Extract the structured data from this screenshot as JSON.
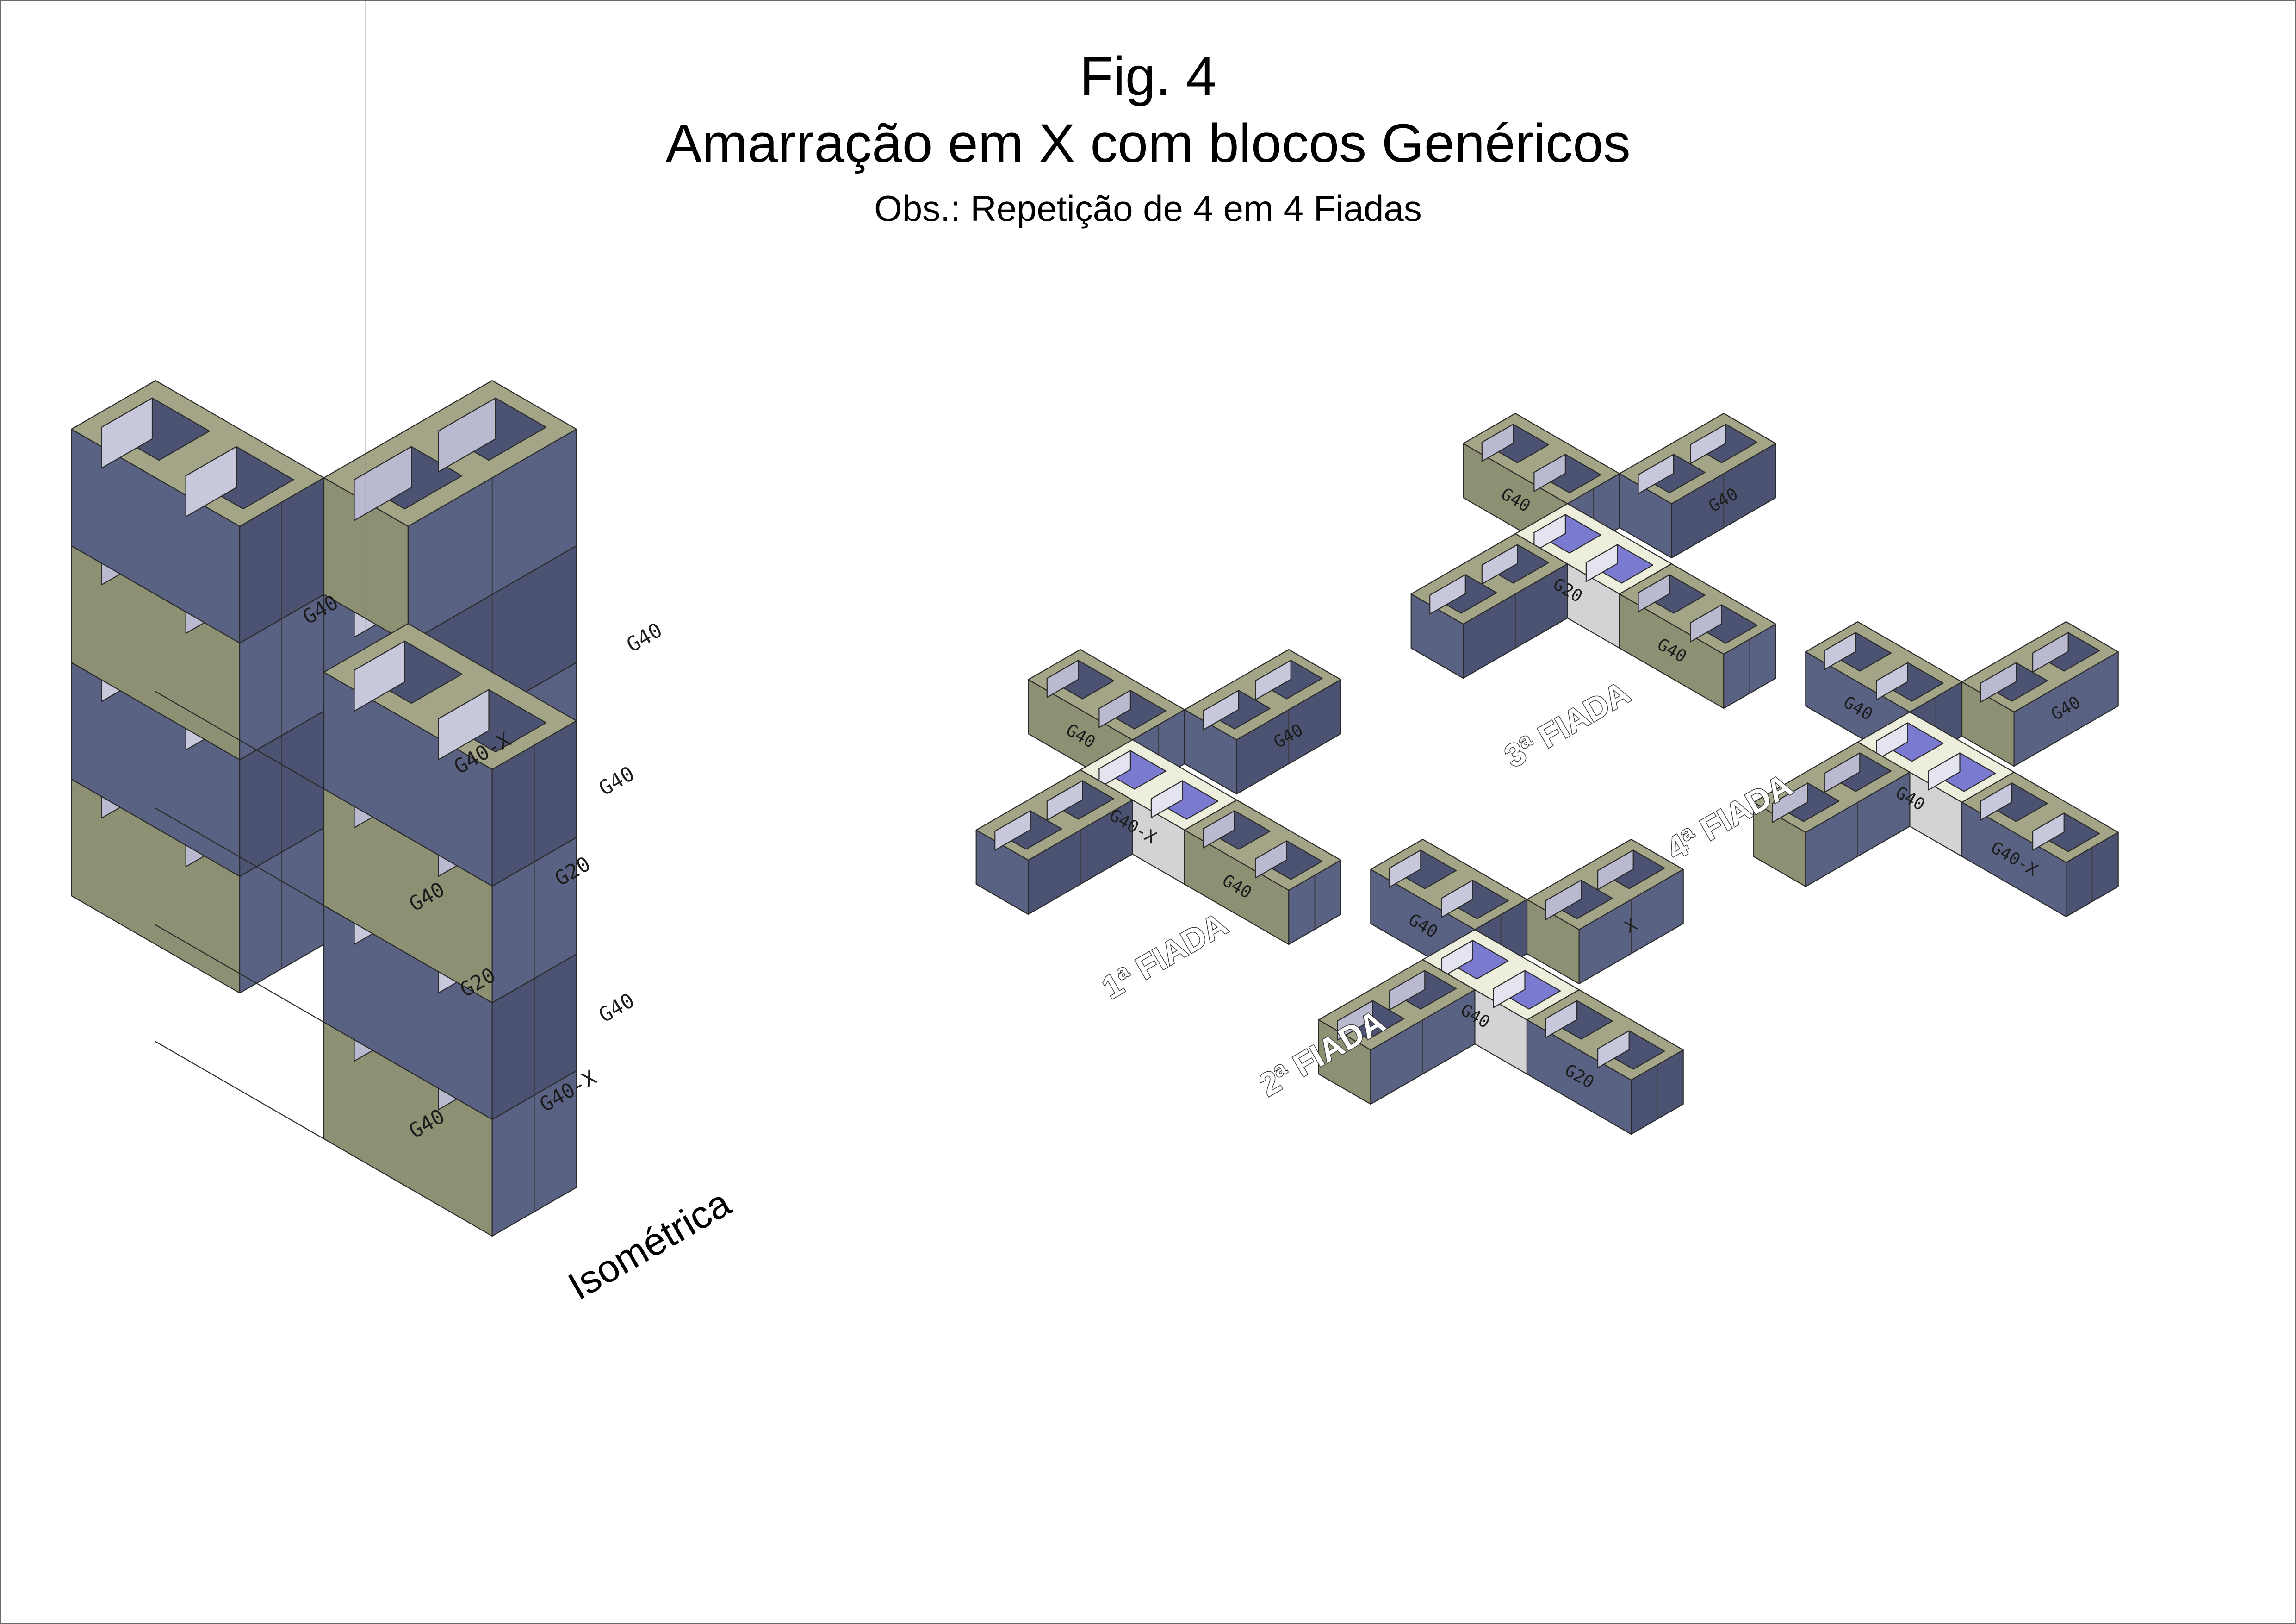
{
  "title": {
    "number": "Fig. 4",
    "main": "Amarração em X com blocos Genéricos",
    "note": "Obs.: Repetição de 4 em 4 Fiadas"
  },
  "colors": {
    "olive_top": "#a4a487",
    "olive_face": "#8e9074",
    "slate_face": "#5a6283",
    "slate_dark": "#4b5272",
    "violet_face": "#7a7ad0",
    "grey_face": "#d3d3d6",
    "cream_top": "#eeeedc",
    "outline": "#2a2a2a"
  },
  "views": {
    "isometric": {
      "label": "Isométrica",
      "blocks": [
        "G40",
        "G40",
        "G40-X",
        "G40",
        "G40",
        "G20",
        "G20",
        "G40",
        "G40",
        "G40-X"
      ]
    },
    "course1": {
      "label": "1ª FIADA",
      "blocks": [
        "G40",
        "G40",
        "G40",
        "G40-X"
      ]
    },
    "course2": {
      "label": "2ª FIADA",
      "blocks": [
        "G40",
        "X",
        "G20",
        "G40"
      ]
    },
    "course3": {
      "label": "3ª FIADA",
      "blocks": [
        "G40",
        "G40",
        "G40",
        "G20"
      ]
    },
    "course4": {
      "label": "4ª FIADA",
      "blocks": [
        "G40",
        "G40",
        "G40-X",
        "G40"
      ]
    }
  }
}
